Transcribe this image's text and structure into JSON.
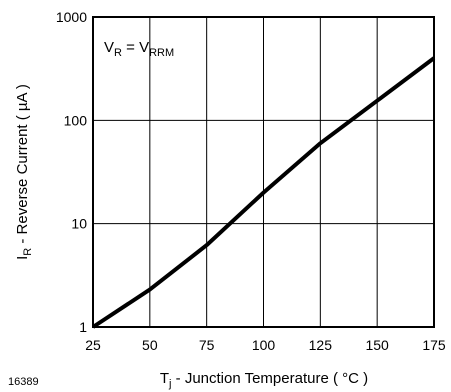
{
  "chart_data": {
    "type": "line",
    "title": "",
    "xlabel_main": "T",
    "xlabel_sub": "j",
    "xlabel_rest": " - Junction Temperature ( °C )",
    "ylabel_main": "I",
    "ylabel_sub": "R",
    "ylabel_rest": " - Reverse Current ( µA )",
    "x_scale": "linear",
    "y_scale": "log",
    "xlim": [
      25,
      175
    ],
    "ylim": [
      1,
      1000
    ],
    "x_ticks": [
      25,
      50,
      75,
      100,
      125,
      150,
      175
    ],
    "x_tick_labels": [
      "25",
      "50",
      "75",
      "100",
      "125",
      "150",
      "175"
    ],
    "y_ticks": [
      1,
      10,
      100,
      1000
    ],
    "y_tick_labels": [
      "1",
      "10",
      "100",
      "1000"
    ],
    "grid": true,
    "annotation": {
      "main1": "V",
      "sub1": "R",
      "eq": " = V",
      "sub2": "RRM"
    },
    "figure_code": "16389",
    "line_color": "#000000",
    "series": [
      {
        "name": "",
        "x": [
          25,
          50,
          75,
          100,
          125,
          150,
          175
        ],
        "y": [
          1.0,
          2.3,
          6.2,
          20,
          60,
          155,
          400
        ]
      }
    ]
  }
}
